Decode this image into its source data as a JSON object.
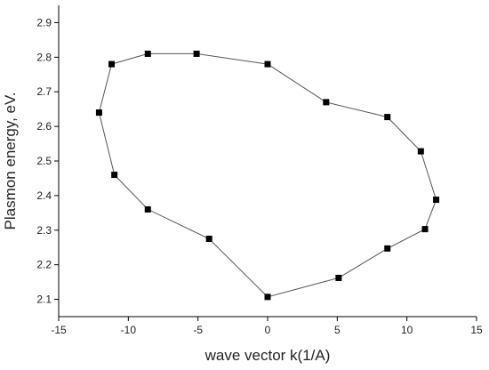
{
  "chart_data": {
    "type": "scatter",
    "xlabel": "wave vector k(1/A)",
    "ylabel": "Plasmon energy, eV.",
    "xlim": [
      -15,
      15
    ],
    "ylim": [
      2.05,
      2.95
    ],
    "xticks": [
      -15,
      -10,
      -5,
      0,
      5,
      10,
      15
    ],
    "yticks": [
      2.1,
      2.2,
      2.3,
      2.4,
      2.5,
      2.6,
      2.7,
      2.8,
      2.9
    ],
    "grid": false,
    "connected": true,
    "marker": "square",
    "series": [
      {
        "x": [
          0.0,
          -5.1,
          -8.6,
          -11.2,
          -12.1,
          -11.0,
          -8.6,
          -4.2,
          0.0,
          5.1,
          8.6,
          11.3,
          12.1,
          11.0,
          8.6,
          4.2,
          0.0
        ],
        "y": [
          2.78,
          2.81,
          2.81,
          2.78,
          2.64,
          2.46,
          2.36,
          2.275,
          2.107,
          2.162,
          2.247,
          2.303,
          2.388,
          2.528,
          2.627,
          2.67,
          2.78
        ]
      }
    ],
    "colors": {
      "line": "#555555",
      "marker": "#000000",
      "axis": "#000000"
    }
  }
}
